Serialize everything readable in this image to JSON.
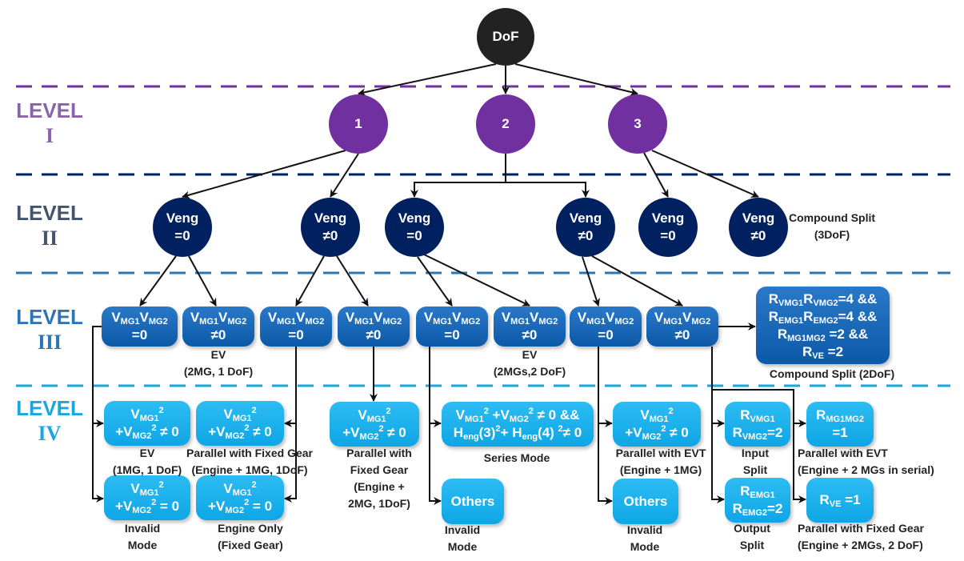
{
  "colors": {
    "level1": "#7030a0",
    "level2": "#002060",
    "level3": "#1f6fbf",
    "level4": "#1cb0ec",
    "dof": "#222222",
    "level1_label": "#8a64a8",
    "level2_label": "#44546a",
    "level3_label": "#2e75b6",
    "level4_label": "#1aa6e0"
  },
  "levels": [
    {
      "word": "LEVEL",
      "numeral": "I"
    },
    {
      "word": "LEVEL",
      "numeral": "II"
    },
    {
      "word": "LEVEL",
      "numeral": "III"
    },
    {
      "word": "LEVEL",
      "numeral": "IV"
    }
  ],
  "nodes": [
    {
      "id": "dof",
      "lines": [
        [
          "DoF"
        ]
      ]
    },
    {
      "id": "dof1",
      "lines": [
        [
          "1"
        ]
      ]
    },
    {
      "id": "dof2",
      "lines": [
        [
          "2"
        ]
      ]
    },
    {
      "id": "dof3",
      "lines": [
        [
          "3"
        ]
      ]
    },
    {
      "id": "v1a",
      "lines": [
        [
          "Veng"
        ],
        [
          "=0"
        ]
      ]
    },
    {
      "id": "v1b",
      "lines": [
        [
          "Veng"
        ],
        [
          "≠0"
        ]
      ]
    },
    {
      "id": "v2a",
      "lines": [
        [
          "Veng"
        ],
        [
          "=0"
        ]
      ]
    },
    {
      "id": "v2b",
      "lines": [
        [
          "Veng"
        ],
        [
          "≠0"
        ]
      ]
    },
    {
      "id": "v3a",
      "lines": [
        [
          "Veng"
        ],
        [
          "=0"
        ]
      ]
    },
    {
      "id": "v3b",
      "lines": [
        [
          "Veng"
        ],
        [
          "≠0"
        ]
      ]
    },
    {
      "id": "m1",
      "lines": [
        [
          "V",
          {
            "sub": "MG1"
          },
          "V",
          {
            "sub": "MG2"
          }
        ],
        [
          "=0"
        ]
      ]
    },
    {
      "id": "m2",
      "lines": [
        [
          "V",
          {
            "sub": "MG1"
          },
          "V",
          {
            "sub": "MG2"
          }
        ],
        [
          "≠0"
        ]
      ]
    },
    {
      "id": "m3",
      "lines": [
        [
          "V",
          {
            "sub": "MG1"
          },
          "V",
          {
            "sub": "MG2"
          }
        ],
        [
          "=0"
        ]
      ]
    },
    {
      "id": "m4",
      "lines": [
        [
          "V",
          {
            "sub": "MG1"
          },
          "V",
          {
            "sub": "MG2"
          }
        ],
        [
          "≠0"
        ]
      ]
    },
    {
      "id": "m5",
      "lines": [
        [
          "V",
          {
            "sub": "MG1"
          },
          "V",
          {
            "sub": "MG2"
          }
        ],
        [
          "=0"
        ]
      ]
    },
    {
      "id": "m6",
      "lines": [
        [
          "V",
          {
            "sub": "MG1"
          },
          "V",
          {
            "sub": "MG2"
          }
        ],
        [
          "≠0"
        ]
      ]
    },
    {
      "id": "m7",
      "lines": [
        [
          "V",
          {
            "sub": "MG1"
          },
          "V",
          {
            "sub": "MG2"
          }
        ],
        [
          "=0"
        ]
      ]
    },
    {
      "id": "m8",
      "lines": [
        [
          "V",
          {
            "sub": "MG1"
          },
          "V",
          {
            "sub": "MG2"
          }
        ],
        [
          "≠0"
        ]
      ]
    },
    {
      "id": "mc",
      "lines": [
        [
          "R",
          {
            "sub": "VMG1"
          },
          "R",
          {
            "sub": "VMG2"
          },
          "=4 &&"
        ],
        [
          "R",
          {
            "sub": "EMG1"
          },
          "R",
          {
            "sub": "EMG2"
          },
          "=4 &&"
        ],
        [
          "R",
          {
            "sub": "MG1MG2"
          },
          " =2 &&"
        ],
        [
          "R",
          {
            "sub": "VE"
          },
          " =2"
        ]
      ]
    },
    {
      "id": "q1",
      "lines": [
        [
          "V",
          {
            "sub": "MG1"
          },
          {
            "sup": "2"
          }
        ],
        [
          "+V",
          {
            "sub": "MG2"
          },
          {
            "sup": "2"
          },
          " ≠ 0"
        ]
      ]
    },
    {
      "id": "q2",
      "lines": [
        [
          "V",
          {
            "sub": "MG1"
          },
          {
            "sup": "2"
          }
        ],
        [
          "+V",
          {
            "sub": "MG2"
          },
          {
            "sup": "2"
          },
          " ≠ 0"
        ]
      ]
    },
    {
      "id": "q3",
      "lines": [
        [
          "V",
          {
            "sub": "MG1"
          },
          {
            "sup": "2"
          }
        ],
        [
          "+V",
          {
            "sub": "MG2"
          },
          {
            "sup": "2"
          },
          " = 0"
        ]
      ]
    },
    {
      "id": "q4",
      "lines": [
        [
          "V",
          {
            "sub": "MG1"
          },
          {
            "sup": "2"
          }
        ],
        [
          "+V",
          {
            "sub": "MG2"
          },
          {
            "sup": "2"
          },
          " = 0"
        ]
      ]
    },
    {
      "id": "q5",
      "lines": [
        [
          "V",
          {
            "sub": "MG1"
          },
          {
            "sup": "2"
          }
        ],
        [
          "+V",
          {
            "sub": "MG2"
          },
          {
            "sup": "2"
          },
          " ≠ 0"
        ]
      ]
    },
    {
      "id": "q6",
      "lines": [
        [
          "V",
          {
            "sub": "MG1"
          },
          {
            "sup": "2"
          },
          " +V",
          {
            "sub": "MG2"
          },
          {
            "sup": "2"
          },
          " ≠ 0 &&"
        ],
        [
          "H",
          {
            "sub": "eng"
          },
          "(3)",
          {
            "sup": "2"
          },
          "+ H",
          {
            "sub": "eng"
          },
          "(4) ",
          {
            "sup": "2"
          },
          "≠ 0"
        ]
      ]
    },
    {
      "id": "q7",
      "lines": [
        [
          "Others"
        ]
      ]
    },
    {
      "id": "q8",
      "lines": [
        [
          "V",
          {
            "sub": "MG1"
          },
          {
            "sup": "2"
          }
        ],
        [
          "+V",
          {
            "sub": "MG2"
          },
          {
            "sup": "2"
          },
          " ≠ 0"
        ]
      ]
    },
    {
      "id": "q9",
      "lines": [
        [
          "Others"
        ]
      ]
    },
    {
      "id": "q10",
      "lines": [
        [
          "R",
          {
            "sub": "VMG1"
          }
        ],
        [
          "R",
          {
            "sub": "VMG2"
          },
          "=2"
        ]
      ]
    },
    {
      "id": "q11",
      "lines": [
        [
          "R",
          {
            "sub": "MG1MG2"
          }
        ],
        [
          "=1"
        ]
      ]
    },
    {
      "id": "q12",
      "lines": [
        [
          "R",
          {
            "sub": "EMG1"
          }
        ],
        [
          "R",
          {
            "sub": "EMG2"
          },
          "=2"
        ]
      ]
    },
    {
      "id": "q13",
      "lines": [
        [
          "R",
          {
            "sub": "VE"
          },
          " =1"
        ]
      ]
    }
  ],
  "captions": [
    {
      "id": "c_comp3",
      "lines": [
        "Compound Split",
        "(3DoF)"
      ]
    },
    {
      "id": "c_ev2mg",
      "lines": [
        "EV",
        "(2MG, 1 DoF)"
      ]
    },
    {
      "id": "c_ev2mgs",
      "lines": [
        "EV",
        "(2MGs,2 DoF)"
      ]
    },
    {
      "id": "c_comp2",
      "lines": [
        "Compound Split (2DoF)"
      ]
    },
    {
      "id": "c_ev1mg",
      "lines": [
        "EV",
        "(1MG, 1 DoF)"
      ]
    },
    {
      "id": "c_pfg1",
      "lines": [
        "Parallel with Fixed Gear",
        "(Engine + 1MG, 1DoF)"
      ]
    },
    {
      "id": "c_inv1",
      "lines": [
        "Invalid",
        "Mode"
      ]
    },
    {
      "id": "c_eng",
      "lines": [
        "Engine Only",
        "(Fixed Gear)"
      ]
    },
    {
      "id": "c_pfg2",
      "lines": [
        "Parallel with",
        "Fixed Gear",
        "(Engine +",
        "2MG, 1DoF)"
      ]
    },
    {
      "id": "c_series",
      "lines": [
        "Series Mode"
      ]
    },
    {
      "id": "c_inv2",
      "lines": [
        "Invalid",
        "Mode"
      ]
    },
    {
      "id": "c_evt1",
      "lines": [
        "Parallel with EVT",
        "(Engine + 1MG)"
      ]
    },
    {
      "id": "c_inv3",
      "lines": [
        "Invalid",
        "Mode"
      ]
    },
    {
      "id": "c_input",
      "lines": [
        "Input",
        "Split"
      ]
    },
    {
      "id": "c_evt2",
      "lines": [
        "Parallel with EVT",
        "(Engine + 2 MGs in serial)"
      ]
    },
    {
      "id": "c_output",
      "lines": [
        "Output",
        "Split"
      ]
    },
    {
      "id": "c_pfg3",
      "lines": [
        "Parallel with Fixed Gear",
        "(Engine + 2MGs, 2 DoF)"
      ]
    }
  ]
}
